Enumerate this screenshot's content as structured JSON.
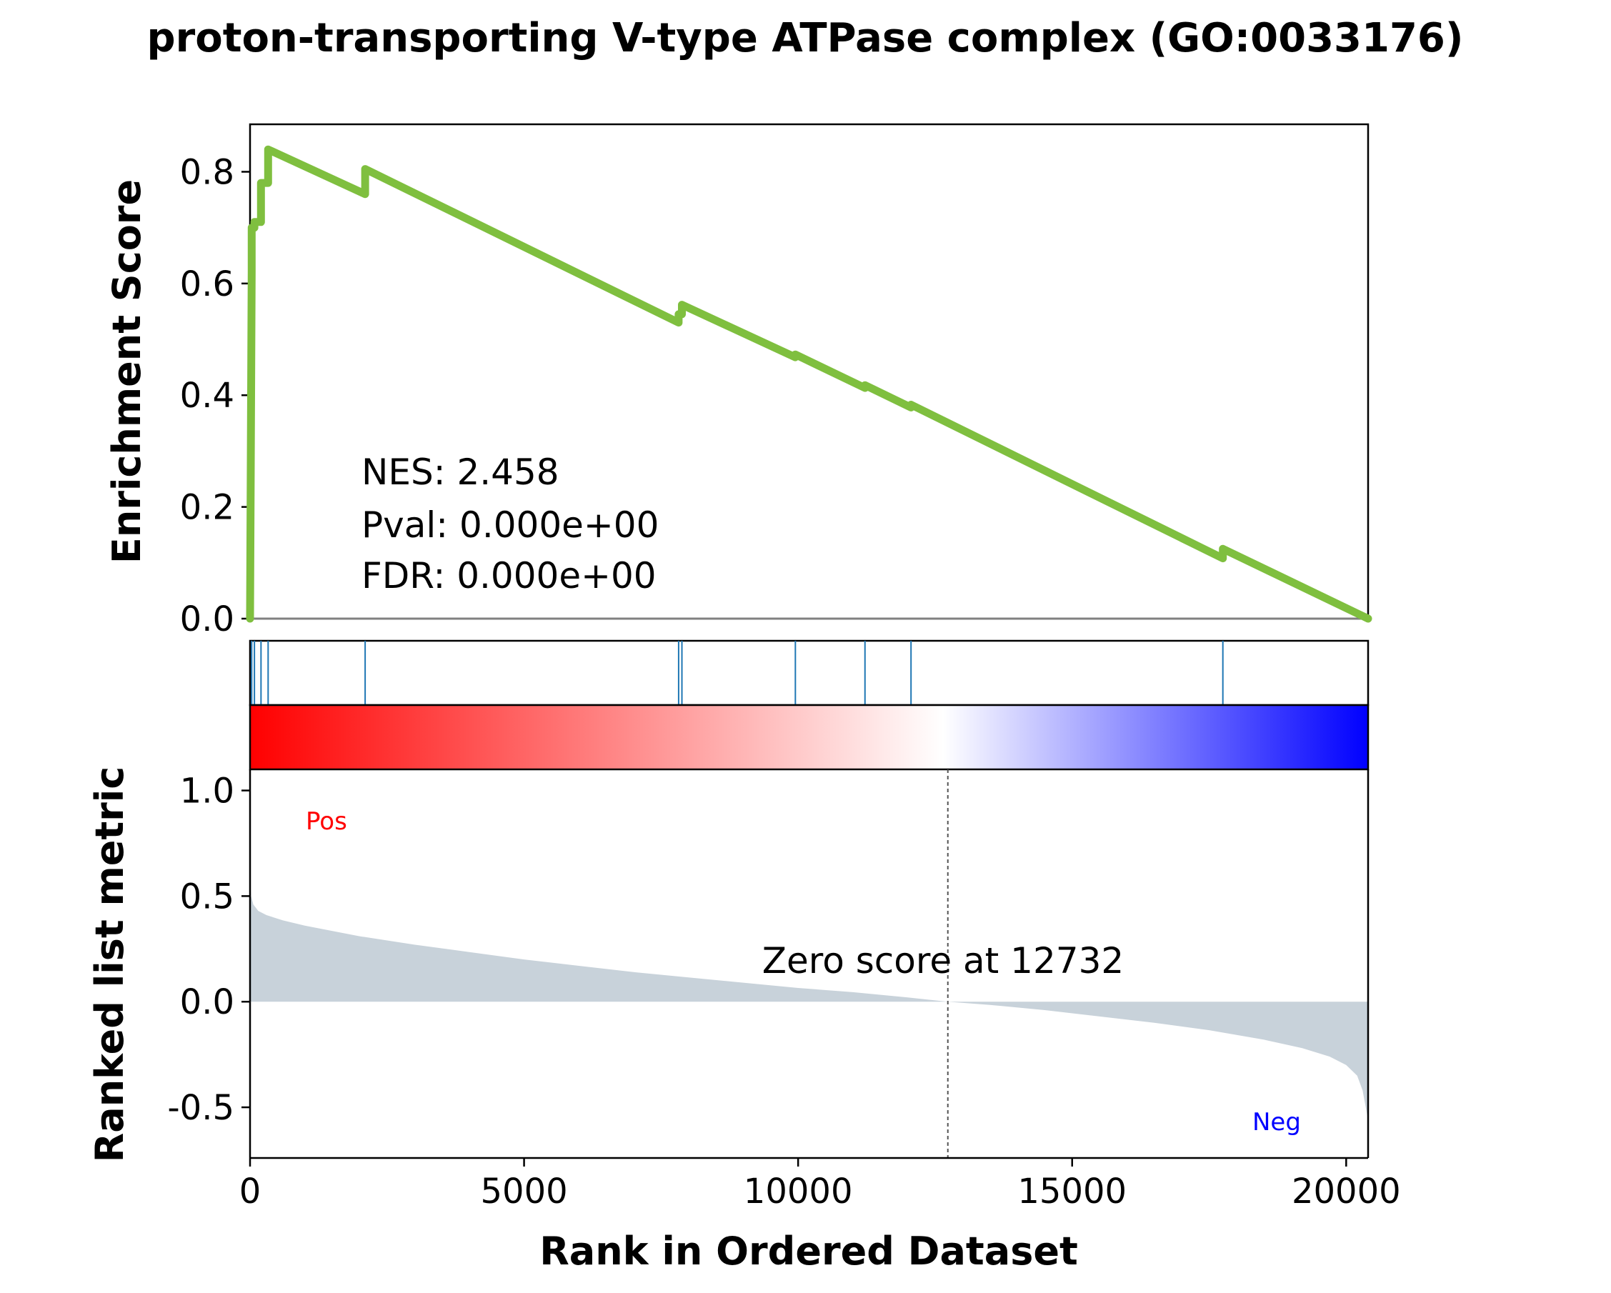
{
  "chart_data": {
    "type": "line",
    "title": "proton-transporting V-type ATPase complex (GO:0033176)",
    "colors": {
      "es_line": "#7fbf3f",
      "hit_line": "#1f77b4",
      "metric_fill": "#c8d2da",
      "pos_label": "#ff0000",
      "neg_label": "#0000ff",
      "zero_line": "#808080"
    },
    "enrichment_panel": {
      "ylabel": "Enrichment Score",
      "ylim": [
        0.0,
        0.885
      ],
      "yticks": [
        0.0,
        0.2,
        0.4,
        0.6,
        0.8
      ],
      "ytick_labels": [
        "0.0",
        "0.2",
        "0.4",
        "0.6",
        "0.8"
      ],
      "series": [
        {
          "x": [
            0,
            30,
            30,
            80,
            80,
            200,
            200,
            330,
            330,
            2100,
            2100,
            7820,
            7820,
            7880,
            7880,
            9950,
            9950,
            11220,
            11220,
            12060,
            12060,
            17750,
            17750,
            20400
          ],
          "y": [
            0.0,
            0.62,
            0.7,
            0.7,
            0.71,
            0.71,
            0.78,
            0.78,
            0.84,
            0.76,
            0.805,
            0.53,
            0.545,
            0.545,
            0.562,
            0.468,
            0.473,
            0.413,
            0.418,
            0.378,
            0.383,
            0.108,
            0.125,
            0.0
          ]
        }
      ],
      "annotations": [
        "NES: 2.458",
        "Pval: 0.000e+00",
        "FDR: 0.000e+00"
      ]
    },
    "hits_panel": {
      "hit_ranks": [
        30,
        80,
        200,
        330,
        2100,
        7820,
        7880,
        9950,
        11220,
        12060,
        17750
      ]
    },
    "metric_panel": {
      "ylabel": "Ranked list metric",
      "xlabel": "Rank in Ordered Dataset",
      "xlim": [
        0,
        20400
      ],
      "xticks": [
        0,
        5000,
        10000,
        15000,
        20000
      ],
      "xtick_labels": [
        "0",
        "5000",
        "10000",
        "15000",
        "20000"
      ],
      "ylim": [
        -0.74,
        1.1
      ],
      "yticks": [
        -0.5,
        0.0,
        0.5,
        1.0
      ],
      "ytick_labels": [
        "-0.5",
        "0.0",
        "0.5",
        "1.0"
      ],
      "curve": {
        "x": [
          0,
          20,
          60,
          150,
          300,
          600,
          1000,
          2000,
          3000,
          4000,
          5000,
          6000,
          7000,
          8000,
          9000,
          10000,
          11000,
          12000,
          12732,
          13500,
          14500,
          15500,
          16500,
          17500,
          18500,
          19200,
          19700,
          20000,
          20200,
          20300,
          20400
        ],
        "y": [
          0.6,
          0.5,
          0.46,
          0.43,
          0.41,
          0.385,
          0.36,
          0.31,
          0.27,
          0.235,
          0.2,
          0.17,
          0.14,
          0.115,
          0.09,
          0.065,
          0.045,
          0.02,
          0.0,
          -0.015,
          -0.04,
          -0.07,
          -0.1,
          -0.135,
          -0.18,
          -0.22,
          -0.26,
          -0.3,
          -0.35,
          -0.42,
          -0.56
        ]
      },
      "zero_cross": 12732,
      "zero_score_label": "Zero score at 12732",
      "pos_label": "Pos",
      "neg_label": "Neg"
    }
  }
}
